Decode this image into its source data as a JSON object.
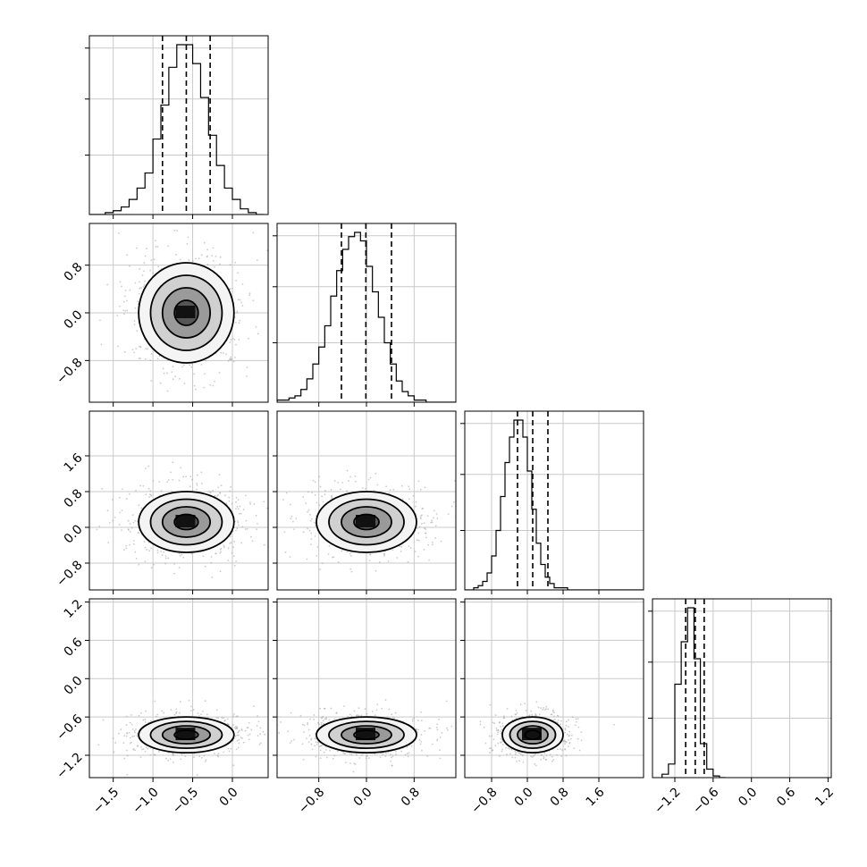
{
  "chart_data": {
    "type": "corner",
    "n_params": 4,
    "grid": true,
    "params": [
      {
        "index": 0,
        "range": [
          -1.8,
          0.45
        ],
        "ticks": [
          -1.5,
          -1.0,
          -0.5,
          0.0
        ],
        "tick_labels": [
          "−1.5",
          "−1.0",
          "−0.5",
          "0.0"
        ],
        "quantiles": [
          -0.88,
          -0.58,
          -0.28
        ],
        "center": -0.58,
        "sigma": 0.3
      },
      {
        "index": 1,
        "range": [
          -1.5,
          1.5
        ],
        "ticks": [
          -0.8,
          0.0,
          0.8
        ],
        "tick_labels": [
          "−0.8",
          "0.0",
          "0.8"
        ],
        "quantiles": [
          -0.42,
          -0.01,
          0.42
        ],
        "center": 0.0,
        "sigma": 0.42
      },
      {
        "index": 2,
        "range": [
          -1.4,
          2.6
        ],
        "ticks": [
          -0.8,
          0.0,
          0.8,
          1.6
        ],
        "tick_labels": [
          "−0.8",
          "0.0",
          "0.8",
          "1.6"
        ],
        "quantiles": [
          -0.22,
          0.12,
          0.46
        ],
        "center": 0.12,
        "sigma": 0.34
      },
      {
        "index": 3,
        "range": [
          -1.55,
          1.25
        ],
        "ticks": [
          -1.2,
          -0.6,
          0.0,
          0.6,
          1.2
        ],
        "tick_labels": [
          "−1.2",
          "−0.6",
          "0.0",
          "0.6",
          "1.2"
        ],
        "quantiles": [
          -1.03,
          -0.88,
          -0.74
        ],
        "center": -0.88,
        "sigma": 0.14
      }
    ],
    "histograms": [
      {
        "param": 0,
        "bin_edges_start": -1.8,
        "bin_width": 0.1,
        "counts": [
          0,
          0,
          1,
          2,
          4,
          8,
          14,
          22,
          40,
          58,
          78,
          90,
          90,
          80,
          62,
          42,
          26,
          14,
          8,
          3,
          1,
          0
        ]
      },
      {
        "param": 1,
        "bin_edges_start": -1.5,
        "bin_width": 0.1,
        "counts": [
          1,
          1,
          2,
          3,
          6,
          11,
          18,
          26,
          36,
          50,
          62,
          72,
          78,
          80,
          76,
          64,
          52,
          40,
          28,
          18,
          10,
          5,
          3,
          1,
          1,
          0,
          0,
          0,
          0,
          0
        ]
      },
      {
        "param": 2,
        "bin_edges_start": -1.4,
        "bin_width": 0.1,
        "counts": [
          0,
          0,
          1,
          2,
          4,
          8,
          16,
          28,
          44,
          60,
          72,
          80,
          80,
          72,
          56,
          38,
          22,
          12,
          6,
          3,
          1,
          1,
          1,
          0,
          0,
          0,
          0,
          0,
          0,
          0,
          0,
          0,
          0,
          0,
          0,
          0,
          0,
          0,
          0,
          0
        ]
      },
      {
        "param": 3,
        "bin_edges_start": -1.4,
        "bin_width": 0.1,
        "counts": [
          2,
          8,
          55,
          80,
          100,
          70,
          20,
          5,
          1,
          0
        ]
      }
    ],
    "contour_levels": [
      "0.5σ",
      "1σ",
      "1.5σ",
      "2σ"
    ]
  }
}
